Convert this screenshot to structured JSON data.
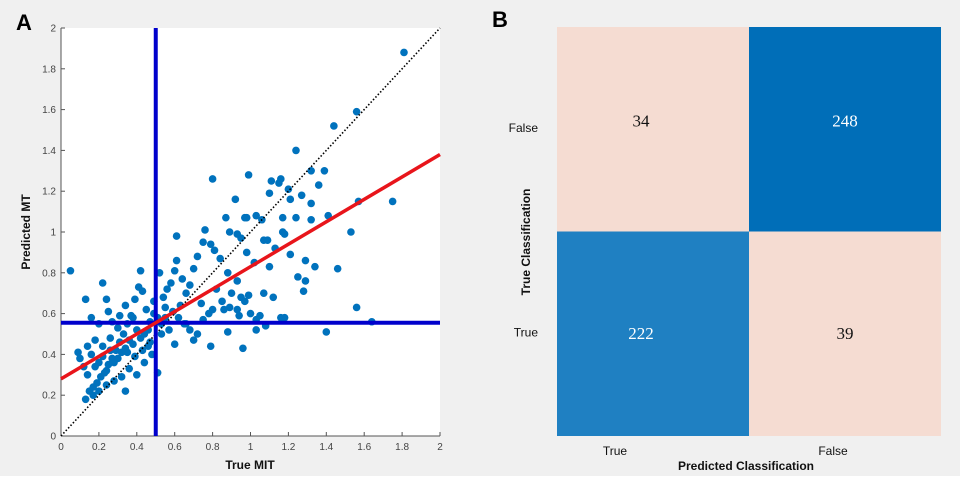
{
  "chart_data": [
    {
      "panel_label": "A",
      "type": "scatter",
      "xlabel": "True MIT",
      "ylabel": "Predicted MT",
      "xlim": [
        0,
        2
      ],
      "ylim": [
        0,
        2
      ],
      "xticks": [
        "0",
        "0.2",
        "0.4",
        "0.6",
        "0.8",
        "1",
        "1.2",
        "1.4",
        "1.6",
        "1.8",
        "2"
      ],
      "yticks": [
        "0",
        "0.2",
        "0.4",
        "0.6",
        "0.8",
        "1",
        "1.2",
        "1.4",
        "1.6",
        "1.8",
        "2"
      ],
      "grid": false,
      "colors": {
        "points": "#0072bd",
        "fit_line": "#e8151b",
        "threshold_lines": "#0000cc",
        "identity_line": "#000000"
      },
      "identity_line": {
        "style": "dotted",
        "from": [
          0,
          0
        ],
        "to": [
          2,
          2
        ]
      },
      "fit_line": {
        "from": [
          0,
          0.28
        ],
        "to": [
          2,
          1.38
        ]
      },
      "threshold_lines": {
        "x": 0.5,
        "y": 0.555
      },
      "points": [
        [
          1.81,
          1.88
        ],
        [
          1.56,
          1.59
        ],
        [
          1.44,
          1.52
        ],
        [
          1.24,
          1.4
        ],
        [
          1.32,
          1.3
        ],
        [
          1.39,
          1.3
        ],
        [
          0.8,
          1.26
        ],
        [
          0.99,
          1.28
        ],
        [
          1.75,
          1.15
        ],
        [
          1.57,
          1.15
        ],
        [
          1.53,
          1.0
        ],
        [
          1.46,
          0.82
        ],
        [
          1.56,
          0.63
        ],
        [
          1.4,
          0.51
        ],
        [
          1.64,
          0.56
        ],
        [
          0.05,
          0.81
        ],
        [
          0.61,
          0.98
        ],
        [
          1.11,
          1.25
        ],
        [
          1.16,
          1.26
        ],
        [
          1.27,
          1.18
        ],
        [
          1.32,
          1.14
        ],
        [
          1.36,
          1.23
        ],
        [
          1.41,
          1.08
        ],
        [
          1.24,
          1.07
        ],
        [
          1.32,
          1.06
        ],
        [
          1.29,
          0.86
        ],
        [
          1.34,
          0.83
        ],
        [
          1.29,
          0.76
        ],
        [
          1.28,
          0.71
        ],
        [
          1.25,
          0.78
        ],
        [
          1.21,
          0.89
        ],
        [
          0.96,
          0.43
        ],
        [
          0.79,
          0.44
        ],
        [
          0.88,
          0.51
        ],
        [
          0.51,
          0.31
        ],
        [
          0.34,
          0.22
        ],
        [
          0.13,
          0.18
        ],
        [
          1.2,
          1.21
        ],
        [
          1.21,
          1.16
        ],
        [
          1.17,
          1.07
        ],
        [
          1.1,
          1.19
        ],
        [
          1.15,
          1.24
        ],
        [
          0.92,
          1.16
        ],
        [
          0.87,
          1.07
        ],
        [
          0.97,
          1.07
        ],
        [
          0.98,
          1.07
        ],
        [
          1.03,
          1.08
        ],
        [
          1.06,
          1.06
        ],
        [
          0.76,
          1.01
        ],
        [
          0.89,
          1.0
        ],
        [
          0.93,
          0.99
        ],
        [
          0.95,
          0.97
        ],
        [
          0.98,
          0.9
        ],
        [
          1.02,
          0.85
        ],
        [
          1.07,
          0.96
        ],
        [
          1.09,
          0.96
        ],
        [
          1.13,
          0.92
        ],
        [
          1.17,
          1.0
        ],
        [
          1.18,
          0.99
        ],
        [
          1.1,
          0.83
        ],
        [
          1.12,
          0.68
        ],
        [
          1.07,
          0.7
        ],
        [
          1.03,
          0.52
        ],
        [
          1.03,
          0.57
        ],
        [
          1.08,
          0.54
        ],
        [
          1.0,
          0.6
        ],
        [
          1.05,
          0.59
        ],
        [
          1.16,
          0.58
        ],
        [
          1.18,
          0.58
        ],
        [
          0.94,
          0.59
        ],
        [
          0.93,
          0.62
        ],
        [
          0.89,
          0.63
        ],
        [
          0.86,
          0.62
        ],
        [
          0.85,
          0.66
        ],
        [
          0.9,
          0.7
        ],
        [
          0.95,
          0.68
        ],
        [
          0.97,
          0.66
        ],
        [
          0.99,
          0.69
        ],
        [
          0.93,
          0.76
        ],
        [
          0.88,
          0.8
        ],
        [
          0.84,
          0.87
        ],
        [
          0.81,
          0.91
        ],
        [
          0.79,
          0.94
        ],
        [
          0.75,
          0.95
        ],
        [
          0.72,
          0.88
        ],
        [
          0.7,
          0.82
        ],
        [
          0.68,
          0.74
        ],
        [
          0.66,
          0.7
        ],
        [
          0.64,
          0.77
        ],
        [
          0.61,
          0.86
        ],
        [
          0.6,
          0.81
        ],
        [
          0.58,
          0.75
        ],
        [
          0.56,
          0.72
        ],
        [
          0.54,
          0.68
        ],
        [
          0.52,
          0.8
        ],
        [
          0.55,
          0.63
        ],
        [
          0.59,
          0.61
        ],
        [
          0.62,
          0.58
        ],
        [
          0.65,
          0.55
        ],
        [
          0.68,
          0.52
        ],
        [
          0.7,
          0.47
        ],
        [
          0.72,
          0.5
        ],
        [
          0.75,
          0.57
        ],
        [
          0.78,
          0.6
        ],
        [
          0.8,
          0.62
        ],
        [
          0.63,
          0.64
        ],
        [
          0.57,
          0.52
        ],
        [
          0.53,
          0.5
        ],
        [
          0.6,
          0.45
        ],
        [
          0.66,
          0.55
        ],
        [
          0.74,
          0.65
        ],
        [
          0.82,
          0.72
        ],
        [
          0.48,
          0.4
        ],
        [
          0.46,
          0.44
        ],
        [
          0.44,
          0.5
        ],
        [
          0.47,
          0.56
        ],
        [
          0.45,
          0.62
        ],
        [
          0.43,
          0.71
        ],
        [
          0.42,
          0.81
        ],
        [
          0.41,
          0.73
        ],
        [
          0.39,
          0.67
        ],
        [
          0.37,
          0.59
        ],
        [
          0.35,
          0.55
        ],
        [
          0.33,
          0.5
        ],
        [
          0.31,
          0.46
        ],
        [
          0.29,
          0.42
        ],
        [
          0.27,
          0.38
        ],
        [
          0.25,
          0.35
        ],
        [
          0.23,
          0.31
        ],
        [
          0.21,
          0.29
        ],
        [
          0.19,
          0.26
        ],
        [
          0.17,
          0.24
        ],
        [
          0.15,
          0.22
        ],
        [
          0.14,
          0.3
        ],
        [
          0.12,
          0.34
        ],
        [
          0.1,
          0.38
        ],
        [
          0.09,
          0.41
        ],
        [
          0.13,
          0.67
        ],
        [
          0.22,
          0.75
        ],
        [
          0.24,
          0.67
        ],
        [
          0.25,
          0.61
        ],
        [
          0.2,
          0.55
        ],
        [
          0.16,
          0.58
        ],
        [
          0.18,
          0.47
        ],
        [
          0.22,
          0.44
        ],
        [
          0.26,
          0.48
        ],
        [
          0.3,
          0.53
        ],
        [
          0.34,
          0.64
        ],
        [
          0.38,
          0.58
        ],
        [
          0.4,
          0.52
        ],
        [
          0.36,
          0.47
        ],
        [
          0.32,
          0.41
        ],
        [
          0.28,
          0.36
        ],
        [
          0.24,
          0.32
        ],
        [
          0.2,
          0.36
        ],
        [
          0.16,
          0.4
        ],
        [
          0.14,
          0.44
        ],
        [
          0.18,
          0.34
        ],
        [
          0.22,
          0.39
        ],
        [
          0.26,
          0.42
        ],
        [
          0.3,
          0.38
        ],
        [
          0.34,
          0.43
        ],
        [
          0.38,
          0.45
        ],
        [
          0.42,
          0.48
        ],
        [
          0.46,
          0.52
        ],
        [
          0.44,
          0.36
        ],
        [
          0.4,
          0.3
        ],
        [
          0.36,
          0.33
        ],
        [
          0.32,
          0.29
        ],
        [
          0.28,
          0.27
        ],
        [
          0.24,
          0.25
        ],
        [
          0.2,
          0.22
        ],
        [
          0.17,
          0.2
        ],
        [
          0.27,
          0.56
        ],
        [
          0.31,
          0.59
        ],
        [
          0.35,
          0.41
        ],
        [
          0.39,
          0.39
        ],
        [
          0.43,
          0.42
        ],
        [
          0.47,
          0.46
        ],
        [
          0.49,
          0.6
        ],
        [
          0.49,
          0.66
        ],
        [
          0.51,
          0.58
        ],
        [
          0.53,
          0.55
        ],
        [
          0.55,
          0.58
        ]
      ]
    },
    {
      "panel_label": "B",
      "type": "heatmap",
      "xlabel": "Predicted Classification",
      "ylabel": "True Classification",
      "x_categories": [
        "True",
        "False"
      ],
      "y_categories": [
        "False",
        "True"
      ],
      "values": [
        [
          34,
          248
        ],
        [
          222,
          39
        ]
      ],
      "colors": {
        "low": "#f5dcd2",
        "high": "#006eb8",
        "mid_high": "#1f80c2"
      }
    }
  ]
}
